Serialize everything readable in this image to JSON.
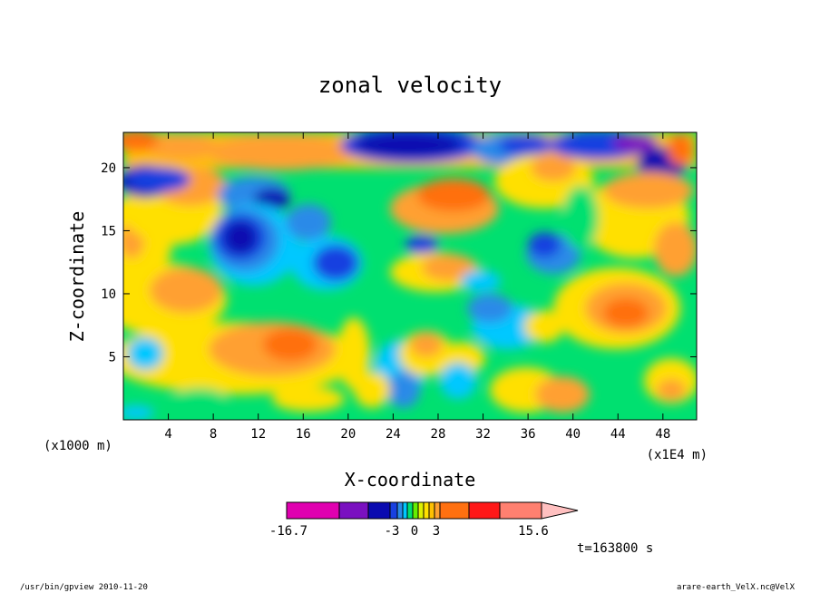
{
  "chart_data": {
    "type": "heatmap",
    "title": "zonal velocity",
    "xlabel": "X-coordinate",
    "ylabel": "Z-coordinate",
    "x_unit_left": "(x1000 m)",
    "x_unit_right": "(x1E4 m)",
    "x_ticks": [
      4,
      8,
      12,
      16,
      20,
      24,
      28,
      32,
      36,
      40,
      44,
      48
    ],
    "y_ticks": [
      5,
      10,
      15,
      20
    ],
    "xlim": [
      0,
      51
    ],
    "ylim": [
      0,
      22.8
    ],
    "colorbar": {
      "labels": [
        "-16.7",
        "-3",
        "0",
        "3",
        "15.6"
      ],
      "colors": [
        "#e000b0",
        "#7a10c0",
        "#0a0ab0",
        "#1840e0",
        "#2a8ae8",
        "#00c8ff",
        "#00e070",
        "#66ee00",
        "#ddf000",
        "#ffe000",
        "#ffc000",
        "#ffa030",
        "#ff7010",
        "#ff1818",
        "#ff8070",
        "#ffc0c0"
      ]
    },
    "annotation": "t=163800 s",
    "grid": false,
    "legend": "colorbar-bottom"
  },
  "footer": {
    "left": "/usr/bin/gpview   2010-11-20",
    "right": "arare-earth_VelX.nc@VelX"
  }
}
